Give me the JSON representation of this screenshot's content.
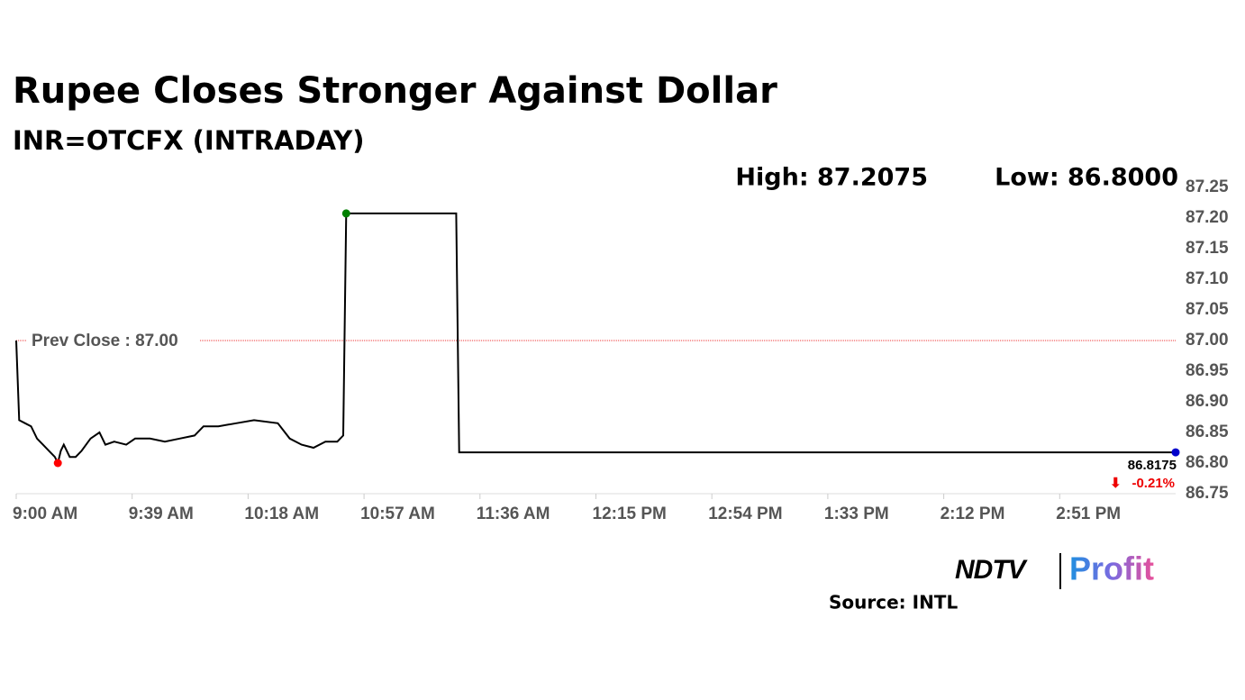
{
  "chart_data": {
    "type": "line",
    "title": "Rupee Closes Stronger Against Dollar",
    "subtitle": "INR=OTCFX (INTRADAY)",
    "high_label": "High: 87.2075",
    "low_label": "Low: 86.8000",
    "prev_close": {
      "label": "Prev Close : 87.00",
      "value": 87
    },
    "last_label": "86.8175",
    "change_label": "-0.21%",
    "source": "Source: INTL",
    "branding": [
      "NDTV",
      "Profit"
    ],
    "series": [
      {
        "name": "INR=OTCFX",
        "color": "#000000",
        "x": [
          "9:00 AM",
          "9:01 AM",
          "9:03 AM",
          "9:05 AM",
          "9:07 AM",
          "9:09 AM",
          "9:11 AM",
          "9:13 AM",
          "9:14 AM",
          "9:15 AM",
          "9:16 AM",
          "9:18 AM",
          "9:20 AM",
          "9:22 AM",
          "9:25 AM",
          "9:28 AM",
          "9:30 AM",
          "9:33 AM",
          "9:37 AM",
          "9:40 AM",
          "9:45 AM",
          "9:50 AM",
          "9:55 AM",
          "10:00 AM",
          "10:03 AM",
          "10:08 AM",
          "10:14 AM",
          "10:20 AM",
          "10:28 AM",
          "10:32 AM",
          "10:36 AM",
          "10:40 AM",
          "10:44 AM",
          "10:48 AM",
          "10:50 AM",
          "10:51 AM",
          "11:28 AM",
          "11:29 AM",
          "3:30 PM"
        ],
        "values": [
          87.0,
          86.87,
          86.865,
          86.86,
          86.84,
          86.83,
          86.82,
          86.81,
          86.8,
          86.82,
          86.83,
          86.81,
          86.81,
          86.82,
          86.84,
          86.85,
          86.83,
          86.835,
          86.83,
          86.84,
          86.84,
          86.835,
          86.84,
          86.845,
          86.86,
          86.86,
          86.865,
          86.87,
          86.865,
          86.84,
          86.83,
          86.825,
          86.835,
          86.835,
          86.845,
          87.2075,
          87.2075,
          86.8175,
          86.8175
        ]
      }
    ],
    "markers": {
      "high": {
        "index": 35,
        "color": "#008000"
      },
      "low": {
        "index": 8,
        "color": "#ff0000"
      },
      "last": {
        "index": 38,
        "color": "#0000cc"
      }
    },
    "xlim": [
      "9:00 AM",
      "3:30 PM"
    ],
    "xticks": [
      "9:00 AM",
      "9:39 AM",
      "10:18 AM",
      "10:57 AM",
      "11:36 AM",
      "12:15 PM",
      "12:54 PM",
      "1:33 PM",
      "2:12 PM",
      "2:51 PM"
    ],
    "ylim": [
      86.75,
      87.25
    ],
    "yticks": [
      87.25,
      {
        "value": 87.2,
        "label": "87.20"
      },
      87.15,
      {
        "value": 87.1,
        "label": "87.10"
      },
      87.05,
      {
        "value": 87.0,
        "label": "87.00"
      },
      86.95,
      {
        "value": 86.9,
        "label": "86.90"
      },
      86.85,
      {
        "value": 86.8,
        "label": "86.80"
      },
      86.75
    ],
    "grid": false
  }
}
